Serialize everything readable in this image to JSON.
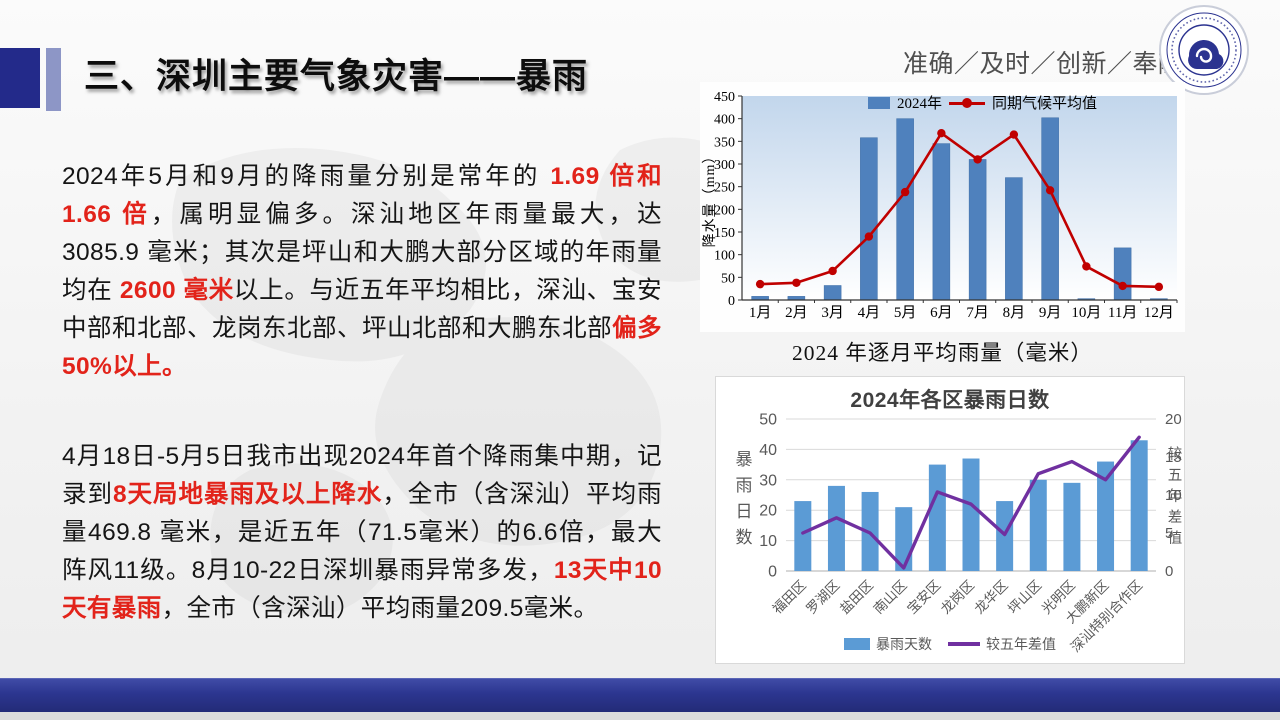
{
  "slide": {
    "title": "三、深圳主要气象灾害——暴雨",
    "slogan": "准确／及时／创新／奉献"
  },
  "paragraphs": [
    {
      "segments": [
        {
          "text": "2024年5月和9月的降雨量分别是常年的 "
        },
        {
          "text": "1.69 倍和 1.66 倍",
          "style": "red"
        },
        {
          "text": "，属明显偏多。深汕地区年雨量最大，达3085.9 毫米；其次是坪山和大鹏大部分区域的年雨量均在 "
        },
        {
          "text": "2600 毫米",
          "style": "red"
        },
        {
          "text": "以上。与近五年平均相比，深汕、宝安中部和北部、龙岗东北部、坪山北部和大鹏东北部"
        },
        {
          "text": "偏多50%以上。",
          "style": "red"
        }
      ]
    },
    {
      "segments": [
        {
          "text": "4月18日-5月5日我市出现2024年首个降雨集中期，记录到"
        },
        {
          "text": "8天局地暴雨及以上降水",
          "style": "red"
        },
        {
          "text": "，全市（含深汕）平均雨量469.8 毫米，是近五年（71.5毫米）的6.6倍，最大阵风11级。8月10-22日深圳暴雨异常多发，"
        },
        {
          "text": "13天中10天有暴雨",
          "style": "red"
        },
        {
          "text": "，全市（含深汕）平均雨量209.5毫米。"
        }
      ]
    }
  ],
  "chart_data": [
    {
      "type": "bar",
      "caption": "2024 年逐月平均雨量（毫米）",
      "categories": [
        "1月",
        "2月",
        "3月",
        "4月",
        "5月",
        "6月",
        "7月",
        "8月",
        "9月",
        "10月",
        "11月",
        "12月"
      ],
      "series": [
        {
          "name": "2024年",
          "type": "bar",
          "color": "#4f81bd",
          "values": [
            8,
            8,
            32,
            358,
            400,
            345,
            310,
            270,
            402,
            3,
            115,
            3
          ]
        },
        {
          "name": "同期气候平均值",
          "type": "line",
          "color": "#c00000",
          "values": [
            35,
            38,
            64,
            140,
            238,
            368,
            310,
            365,
            242,
            74,
            31,
            29
          ]
        }
      ],
      "ylabel": "降水量（mm）",
      "ylim": [
        0,
        450
      ],
      "ytick_step": 50,
      "grid": false,
      "legend_position": "top-center",
      "plot_gradient_top": "#c2d6ec",
      "plot_gradient_bottom": "#ffffff"
    },
    {
      "type": "bar",
      "title": "2024年各区暴雨日数",
      "categories": [
        "福田区",
        "罗湖区",
        "盐田区",
        "南山区",
        "宝安区",
        "龙岗区",
        "龙华区",
        "坪山区",
        "光明区",
        "大鹏新区",
        "深汕特别合作区"
      ],
      "series": [
        {
          "name": "暴雨天数",
          "type": "bar",
          "axis": "left",
          "color": "#5b9bd5",
          "values": [
            23,
            28,
            26,
            21,
            35,
            37,
            23,
            30,
            29,
            36,
            43
          ]
        },
        {
          "name": "较五年差值",
          "type": "line",
          "axis": "right",
          "color": "#7030a0",
          "values": [
            5,
            7,
            5,
            0.4,
            10.4,
            8.8,
            4.8,
            12.8,
            14.4,
            12,
            17.6
          ]
        }
      ],
      "ylabel_left": "暴雨日数",
      "ylabel_right": "较五年差值",
      "ylim_left": [
        0,
        50
      ],
      "ytick_step_left": 10,
      "ylim_right": [
        0,
        20
      ],
      "ytick_step_right": 5,
      "grid": true,
      "legend_position": "bottom"
    }
  ],
  "colors": {
    "accent_navy": "#232a8a",
    "accent_light": "#8d96c6",
    "highlight_red": "#e2231a",
    "footer_navy": "#2c3690",
    "bar_blue_monthly": "#4f81bd",
    "bar_blue_district": "#5b9bd5",
    "line_red": "#c00000",
    "line_purple": "#7030a0"
  }
}
